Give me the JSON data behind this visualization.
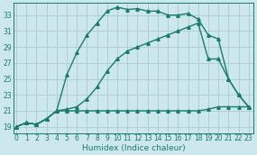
{
  "xlabel": "Humidex (Indice chaleur)",
  "bg_color": "#cce8ec",
  "grid_color": "#aacccc",
  "line_color": "#1a7a6e",
  "x_ticks": [
    0,
    1,
    2,
    3,
    4,
    5,
    6,
    7,
    8,
    9,
    10,
    11,
    12,
    13,
    14,
    15,
    16,
    17,
    18,
    19,
    20,
    21,
    22,
    23
  ],
  "y_ticks": [
    19,
    21,
    23,
    25,
    27,
    29,
    31,
    33
  ],
  "xlim": [
    -0.3,
    23.5
  ],
  "ylim": [
    18.2,
    34.5
  ],
  "series1_x": [
    0,
    1,
    2,
    3,
    4,
    5,
    6,
    7,
    8,
    9,
    10,
    11,
    12,
    13,
    14,
    15,
    16,
    17,
    18,
    19,
    20,
    21,
    22,
    23
  ],
  "series1_y": [
    19.0,
    19.5,
    19.3,
    20.0,
    21.0,
    25.5,
    28.3,
    30.5,
    32.0,
    33.5,
    34.0,
    33.7,
    33.8,
    33.5,
    33.5,
    33.0,
    33.0,
    33.2,
    32.5,
    30.5,
    30.0,
    25.0,
    23.0,
    21.5
  ],
  "series2_x": [
    0,
    1,
    2,
    3,
    4,
    5,
    6,
    7,
    8,
    9,
    10,
    11,
    12,
    13,
    14,
    15,
    16,
    17,
    18,
    19,
    20,
    21,
    22,
    23
  ],
  "series2_y": [
    19.0,
    19.5,
    19.3,
    20.0,
    21.0,
    21.0,
    21.0,
    21.0,
    21.0,
    21.0,
    21.0,
    21.0,
    21.0,
    21.0,
    21.0,
    21.0,
    21.0,
    21.0,
    21.0,
    21.2,
    21.5,
    21.5,
    21.5,
    21.5
  ],
  "series3_x": [
    0,
    1,
    2,
    3,
    4,
    5,
    6,
    7,
    8,
    9,
    10,
    11,
    12,
    13,
    14,
    15,
    16,
    17,
    18,
    19,
    20,
    21,
    22,
    23
  ],
  "series3_y": [
    19.0,
    19.5,
    19.3,
    20.0,
    21.0,
    21.2,
    21.5,
    22.5,
    24.0,
    26.0,
    27.5,
    28.5,
    29.0,
    29.5,
    30.0,
    30.5,
    31.0,
    31.5,
    32.0,
    27.5,
    27.5,
    25.0,
    23.0,
    21.5
  ],
  "marker": "^",
  "marker_size": 2.5,
  "linewidth": 1.0,
  "tick_fontsize": 5.5,
  "xlabel_fontsize": 6.5
}
